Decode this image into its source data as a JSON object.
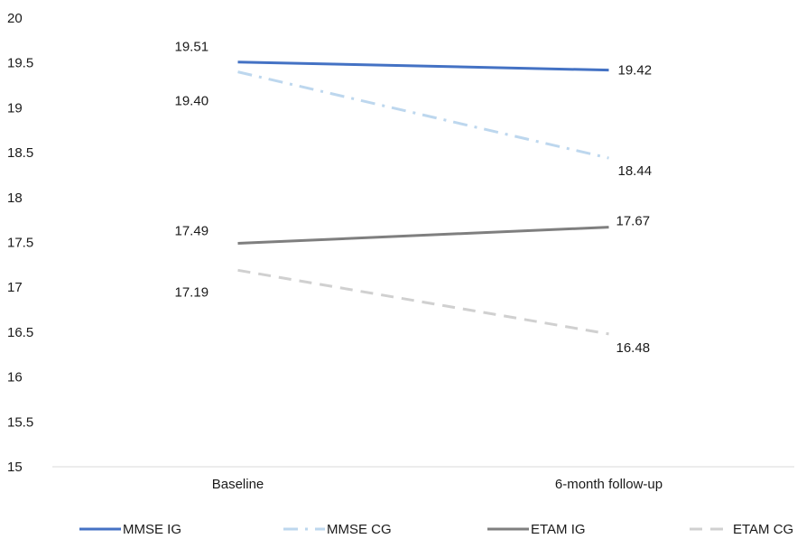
{
  "chart_data": {
    "type": "line",
    "title": "",
    "xlabel": "",
    "ylabel": "",
    "categories": [
      "Baseline",
      "6-month follow-up"
    ],
    "ylim": [
      15,
      20
    ],
    "yticks": [
      15,
      15.5,
      16,
      16.5,
      17,
      17.5,
      18,
      18.5,
      19,
      19.5,
      20
    ],
    "ytick_labels": [
      "15",
      "15.5",
      "16",
      "16.5",
      "17",
      "17.5",
      "18",
      "18.5",
      "19",
      "19.5",
      "20"
    ],
    "grid": false,
    "legend_position": "bottom",
    "series": [
      {
        "name": "MMSE IG",
        "values": [
          19.51,
          19.42
        ],
        "labels": [
          "19.51",
          "19.42"
        ],
        "color": "#4472C4",
        "dash": "solid"
      },
      {
        "name": "MMSE CG",
        "values": [
          19.4,
          18.44
        ],
        "labels": [
          "19.40",
          "18.44"
        ],
        "color": "#BDD7EE",
        "dash": "dash-dot"
      },
      {
        "name": "ETAM IG",
        "values": [
          17.49,
          17.67
        ],
        "labels": [
          "17.49",
          "17.67"
        ],
        "color": "#7F7F7F",
        "dash": "solid"
      },
      {
        "name": "ETAM CG",
        "values": [
          17.19,
          16.48
        ],
        "labels": [
          "17.19",
          "16.48"
        ],
        "color": "#D0D0D0",
        "dash": "dash"
      }
    ]
  }
}
